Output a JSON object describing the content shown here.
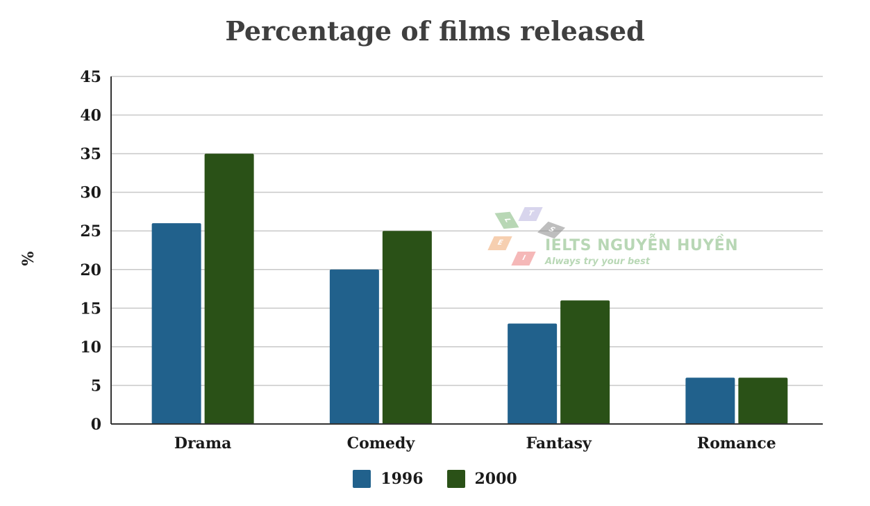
{
  "chart_data": {
    "type": "bar",
    "title": "Percentage of films released",
    "ylabel": "%",
    "xlabel": "",
    "categories": [
      "Drama",
      "Comedy",
      "Fantasy",
      "Romance"
    ],
    "series": [
      {
        "name": "1996",
        "values": [
          26,
          20,
          13,
          6
        ],
        "color": "#21618c"
      },
      {
        "name": "2000",
        "values": [
          35,
          25,
          16,
          6
        ],
        "color": "#2a5117"
      }
    ],
    "ylim": [
      0,
      45
    ],
    "yticks": [
      "0",
      "5",
      "10",
      "15",
      "20",
      "25",
      "30",
      "35",
      "40",
      "45"
    ],
    "grid": true,
    "legend_position": "bottom"
  },
  "watermark": {
    "brand": "IELTS NGUYỄN HUYỀN",
    "tagline": "Always try your best",
    "tiles": [
      "L",
      "T",
      "S",
      "E",
      "I"
    ]
  }
}
